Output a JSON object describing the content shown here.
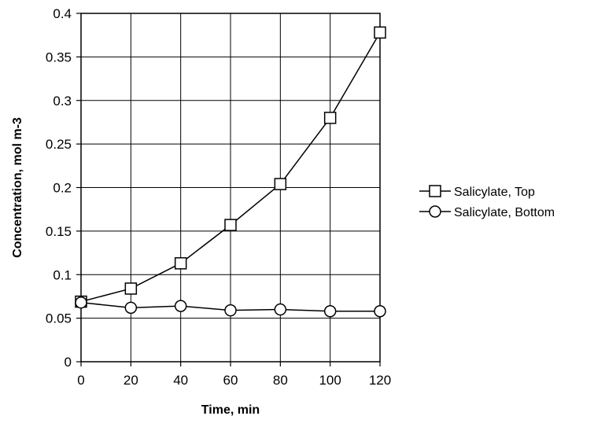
{
  "chart_data": {
    "type": "line",
    "title": "",
    "xlabel": "Time, min",
    "ylabel": "Concentration, mol m-3",
    "x": [
      0,
      20,
      40,
      60,
      80,
      100,
      120
    ],
    "xlim": [
      0,
      120
    ],
    "ylim": [
      0,
      0.4
    ],
    "xticks": [
      "0",
      "20",
      "40",
      "60",
      "80",
      "100",
      "120"
    ],
    "yticks": [
      "0",
      "0.05",
      "0.1",
      "0.15",
      "0.2",
      "0.25",
      "0.3",
      "0.35",
      "0.4"
    ],
    "grid": true,
    "legend_position": "right",
    "series": [
      {
        "name": "Salicylate, Top",
        "marker": "square",
        "values": [
          0.069,
          0.084,
          0.113,
          0.157,
          0.204,
          0.28,
          0.378
        ]
      },
      {
        "name": "Salicylate, Bottom",
        "marker": "circle",
        "values": [
          0.068,
          0.062,
          0.064,
          0.059,
          0.06,
          0.058,
          0.058
        ]
      }
    ]
  }
}
